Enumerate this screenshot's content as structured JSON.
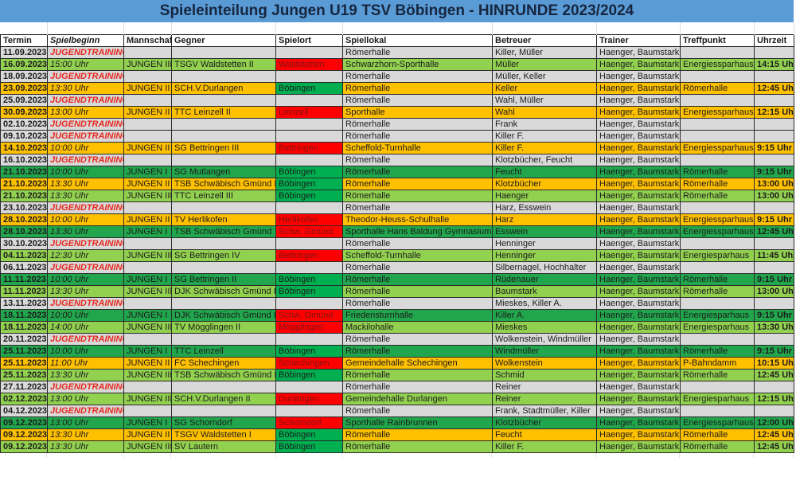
{
  "title": "Spieleinteilung Jungen U19 TSV Böbingen - HINRUNDE 2023/2024",
  "colors": {
    "title_bg": "#5b9bd5",
    "title_text": "#16263f",
    "team": {
      "I": "#22a64d",
      "II": "#ffc000",
      "III": "#92d050",
      "training": "#d9d9d9"
    },
    "venue_home_bg": "#00b050",
    "venue_away_bg": "#ff0000",
    "venue_away_text": "#7e1414",
    "training_text": "#e8281e"
  },
  "table": {
    "headers": [
      "Termin",
      "Spielbeginn",
      "Mannschaft",
      "Gegner",
      "Spielort",
      "Spiellokal",
      "Betreuer",
      "Trainer",
      "Treffpunkt",
      "Uhrzeit"
    ],
    "rows": [
      {
        "date": "11.09.2023",
        "begin": "JUGENDTRAINING",
        "team": "training",
        "mannschaft": "",
        "gegner": "",
        "spielort": "",
        "venue": "",
        "spiellokal": "Römerhalle",
        "betreuer": "Killer, Müller",
        "trainer": "Haenger, Baumstark",
        "treffpunkt": "",
        "uhrzeit": ""
      },
      {
        "date": "16.09.2023",
        "begin": "15:00 Uhr",
        "team": "III",
        "mannschaft": "JUNGEN III",
        "gegner": "TSGV Waldstetten II",
        "spielort": "Waldstetten",
        "venue": "away",
        "spiellokal": "Schwarzhorn-Sporthalle",
        "betreuer": "Müller",
        "trainer": "Haenger, Baumstark",
        "treffpunkt": "Energiessparhaus",
        "uhrzeit": "14:15 Uhr"
      },
      {
        "date": "18.09.2023",
        "begin": "JUGENDTRAINING",
        "team": "training",
        "mannschaft": "",
        "gegner": "",
        "spielort": "",
        "venue": "",
        "spiellokal": "Römerhalle",
        "betreuer": "Müller, Keller",
        "trainer": "Haenger, Baumstark",
        "treffpunkt": "",
        "uhrzeit": ""
      },
      {
        "date": "23.09.2023",
        "begin": "13:30 Uhr",
        "team": "II",
        "mannschaft": "JUNGEN II",
        "gegner": "SCH.V.Durlangen",
        "spielort": "Böbingen",
        "venue": "home",
        "spiellokal": "Römerhalle",
        "betreuer": "Keller",
        "trainer": "Haenger, Baumstark",
        "treffpunkt": "Römerhalle",
        "uhrzeit": "12:45 Uhr"
      },
      {
        "date": "25.09.2023",
        "begin": "JUGENDTRAINING",
        "team": "training",
        "mannschaft": "",
        "gegner": "",
        "spielort": "",
        "venue": "",
        "spiellokal": "Römerhalle",
        "betreuer": "Wahl, Müller",
        "trainer": "Haenger, Baumstark",
        "treffpunkt": "",
        "uhrzeit": ""
      },
      {
        "date": "30.09.2023",
        "begin": "13:00 Uhr",
        "team": "II",
        "mannschaft": "JUNGEN II",
        "gegner": "TTC Leinzell II",
        "spielort": "Leinzell",
        "venue": "away",
        "spiellokal": "Sporthalle",
        "betreuer": "Wahl",
        "trainer": "Haenger, Baumstark",
        "treffpunkt": "Energiessparhaus",
        "uhrzeit": "12:15 Uhr"
      },
      {
        "date": "02.10.2023",
        "begin": "JUGENDTRAINING",
        "team": "training",
        "mannschaft": "",
        "gegner": "",
        "spielort": "",
        "venue": "",
        "spiellokal": "Römerhalle",
        "betreuer": "Frank",
        "trainer": "Haenger, Baumstark",
        "treffpunkt": "",
        "uhrzeit": ""
      },
      {
        "date": "09.10.2023",
        "begin": "JUGENDTRAINING",
        "team": "training",
        "mannschaft": "",
        "gegner": "",
        "spielort": "",
        "venue": "",
        "spiellokal": "Römerhalle",
        "betreuer": "Killer F.",
        "trainer": "Haenger, Baumstark",
        "treffpunkt": "",
        "uhrzeit": ""
      },
      {
        "date": "14.10.2023",
        "begin": "10:00 Uhr",
        "team": "II",
        "mannschaft": "JUNGEN II",
        "gegner": "SG Bettringen III",
        "spielort": "Bettringen",
        "venue": "away",
        "spiellokal": "Scheffold-Turnhalle",
        "betreuer": "Killer F.",
        "trainer": "Haenger, Baumstark",
        "treffpunkt": "Energiessparhaus",
        "uhrzeit": "9:15 Uhr"
      },
      {
        "date": "16.10.2023",
        "begin": "JUGENDTRAINING",
        "team": "training",
        "mannschaft": "",
        "gegner": "",
        "spielort": "",
        "venue": "",
        "spiellokal": "Römerhalle",
        "betreuer": "Klotzbücher, Feucht",
        "trainer": "Haenger, Baumstark",
        "treffpunkt": "",
        "uhrzeit": ""
      },
      {
        "date": "21.10.2023",
        "begin": "10:00 Uhr",
        "team": "I",
        "mannschaft": "JUNGEN I",
        "gegner": "SG Mutlangen",
        "spielort": "Böbingen",
        "venue": "home",
        "spiellokal": "Römerhalle",
        "betreuer": "Feucht",
        "trainer": "Haenger, Baumstark",
        "treffpunkt": "Römerhalle",
        "uhrzeit": "9:15 Uhr"
      },
      {
        "date": "21.10.2023",
        "begin": "13:30 Uhr",
        "team": "II",
        "mannschaft": "JUNGEN II",
        "gegner": "TSB Schwäbisch Gmünd II",
        "spielort": "Böbingen",
        "venue": "home",
        "spiellokal": "Römerhalle",
        "betreuer": "Klotzbücher",
        "trainer": "Haenger, Baumstark",
        "treffpunkt": "Römerhalle",
        "uhrzeit": "13:00 Uhr"
      },
      {
        "date": "21.10.2023",
        "begin": "13:30 Uhr",
        "team": "III",
        "mannschaft": "JUNGEN III",
        "gegner": "TTC Leinzell III",
        "spielort": "Böbingen",
        "venue": "home",
        "spiellokal": "Römerhalle",
        "betreuer": "Haenger",
        "trainer": "Haenger, Baumstark",
        "treffpunkt": "Römerhalle",
        "uhrzeit": "13:00 Uhr"
      },
      {
        "date": "23.10.2023",
        "begin": "JUGENDTRAINING",
        "team": "training",
        "mannschaft": "",
        "gegner": "",
        "spielort": "",
        "venue": "",
        "spiellokal": "Römerhalle",
        "betreuer": "Harz, Esswein",
        "trainer": "Haenger, Baumstark",
        "treffpunkt": "",
        "uhrzeit": ""
      },
      {
        "date": "28.10.2023",
        "begin": "10:00 Uhr",
        "team": "II",
        "mannschaft": "JUNGEN II",
        "gegner": "TV Herlikofen",
        "spielort": "Herlikofen",
        "venue": "away",
        "spiellokal": "Theodor-Heuss-Schulhalle",
        "betreuer": "Harz",
        "trainer": "Haenger, Baumstark",
        "treffpunkt": "Energiessparhaus",
        "uhrzeit": "9:15 Uhr"
      },
      {
        "date": "28.10.2023",
        "begin": "13:30 Uhr",
        "team": "I",
        "mannschaft": "JUNGEN I",
        "gegner": "TSB Schwäbisch Gmünd",
        "spielort": "Schw. Gmünd",
        "venue": "away",
        "spiellokal": "Sporthalle Hans Baldung Gymnasium",
        "betreuer": "Esswein",
        "trainer": "Haenger, Baumstark",
        "treffpunkt": "Energiessparhaus",
        "uhrzeit": "12:45 Uhr"
      },
      {
        "date": "30.10.2023",
        "begin": "JUGENDTRAINING",
        "team": "training",
        "mannschaft": "",
        "gegner": "",
        "spielort": "",
        "venue": "",
        "spiellokal": "Römerhalle",
        "betreuer": "Henninger",
        "trainer": "Haenger, Baumstark",
        "treffpunkt": "",
        "uhrzeit": ""
      },
      {
        "date": "04.11.2023",
        "begin": "12:30 Uhr",
        "team": "III",
        "mannschaft": "JUNGEN III",
        "gegner": "SG Bettringen IV",
        "spielort": "Bettringen",
        "venue": "away",
        "spiellokal": "Scheffold-Turnhalle",
        "betreuer": "Henninger",
        "trainer": "Haenger, Baumstark",
        "treffpunkt": "Energiesparhaus",
        "uhrzeit": "11:45 Uhr"
      },
      {
        "date": "06.11.2023",
        "begin": "JUGENDTRAINING",
        "team": "training",
        "mannschaft": "",
        "gegner": "",
        "spielort": "",
        "venue": "",
        "spiellokal": "Römerhalle",
        "betreuer": "Silbernagel, Hochhalter",
        "trainer": "Haenger, Baumstark",
        "treffpunkt": "",
        "uhrzeit": ""
      },
      {
        "date": "11.11.2023",
        "begin": "10:00 Uhr",
        "team": "I",
        "mannschaft": "JUNGEN I",
        "gegner": "SG Bettringen II",
        "spielort": "Böbingen",
        "venue": "home",
        "spiellokal": "Römerhalle",
        "betreuer": "Rüdenauer",
        "trainer": "Haenger, Baumstark",
        "treffpunkt": "Römerhalle",
        "uhrzeit": "9:15 Uhr"
      },
      {
        "date": "11.11.2023",
        "begin": "13:30 Uhr",
        "team": "III",
        "mannschaft": "JUNGEN III",
        "gegner": "DJK Schwäbisch Gmünd II",
        "spielort": "Böbingen",
        "venue": "home",
        "spiellokal": "Römerhalle",
        "betreuer": "Baumstark",
        "trainer": "Haenger, Baumstark",
        "treffpunkt": "Römerhalle",
        "uhrzeit": "13:00 Uhr"
      },
      {
        "date": "13.11.2023",
        "begin": "JUGENDTRAINING",
        "team": "training",
        "mannschaft": "",
        "gegner": "",
        "spielort": "",
        "venue": "",
        "spiellokal": "Römerhalle",
        "betreuer": "Mieskes, Killer A.",
        "trainer": "Haenger, Baumstark",
        "treffpunkt": "",
        "uhrzeit": ""
      },
      {
        "date": "18.11.2023",
        "begin": "10:00 Uhr",
        "team": "I",
        "mannschaft": "JUNGEN I",
        "gegner": "DJK Schwäbisch Gmünd I",
        "spielort": "Schw. Gmünd",
        "venue": "away",
        "spiellokal": "Friedensturnhalle",
        "betreuer": "Killer A.",
        "trainer": "Haenger, Baumstark",
        "treffpunkt": "Energiesparhaus",
        "uhrzeit": "9:15 Uhr"
      },
      {
        "date": "18.11.2023",
        "begin": "14:00 Uhr",
        "team": "III",
        "mannschaft": "JUNGEN III",
        "gegner": "TV Mögglingen II",
        "spielort": "Mögglingen",
        "venue": "away",
        "spiellokal": "Mackilohalle",
        "betreuer": "Mieskes",
        "trainer": "Haenger, Baumstark",
        "treffpunkt": "Energiesparhaus",
        "uhrzeit": "13:30 Uhr"
      },
      {
        "date": "20.11.2023",
        "begin": "JUGENDTRAINING",
        "team": "training",
        "mannschaft": "",
        "gegner": "",
        "spielort": "",
        "venue": "",
        "spiellokal": "Römerhalle",
        "betreuer": "Wolkenstein, Windmüller",
        "trainer": "Haenger, Baumstark",
        "treffpunkt": "",
        "uhrzeit": ""
      },
      {
        "date": "25.11.2023",
        "begin": "10:00 Uhr",
        "team": "I",
        "mannschaft": "JUNGEN I",
        "gegner": "TTC Leinzell",
        "spielort": "Böbingen",
        "venue": "home",
        "spiellokal": "Römerhalle",
        "betreuer": "Windmüller",
        "trainer": "Haenger, Baumstark",
        "treffpunkt": "Römerhalle",
        "uhrzeit": "9:15 Uhr"
      },
      {
        "date": "25.11.2023",
        "begin": "11:00 Uhr",
        "team": "II",
        "mannschaft": "JUNGEN II",
        "gegner": "FC Schechingen",
        "spielort": "Schechingen",
        "venue": "away",
        "spiellokal": "Gemeindehalle Schechingen",
        "betreuer": "Wolkenstein",
        "trainer": "Haenger, Baumstark",
        "treffpunkt": "P-Bahndamm",
        "uhrzeit": "10:15 Uhr"
      },
      {
        "date": "25.11.2023",
        "begin": "13:30 Uhr",
        "team": "III",
        "mannschaft": "JUNGEN III",
        "gegner": "TSB Schwäbisch Gmünd II",
        "spielort": "Böbingen",
        "venue": "home",
        "spiellokal": "Römerhalle",
        "betreuer": "Schmid",
        "trainer": "Haenger, Baumstark",
        "treffpunkt": "Römerhalle",
        "uhrzeit": "12:45 Uhr"
      },
      {
        "date": "27.11.2023",
        "begin": "JUGENDTRAINING",
        "team": "training",
        "mannschaft": "",
        "gegner": "",
        "spielort": "",
        "venue": "",
        "spiellokal": "Römerhalle",
        "betreuer": "Reiner",
        "trainer": "Haenger, Baumstark",
        "treffpunkt": "",
        "uhrzeit": ""
      },
      {
        "date": "02.12.2023",
        "begin": "13:00 Uhr",
        "team": "III",
        "mannschaft": "JUNGEN III",
        "gegner": "SCH.V.Durlangen II",
        "spielort": "Durlangen",
        "venue": "away",
        "spiellokal": "Gemeindehalle Durlangen",
        "betreuer": "Reiner",
        "trainer": "Haenger, Baumstark",
        "treffpunkt": "Energiesparhaus",
        "uhrzeit": "12:15 Uhr"
      },
      {
        "date": "04.12.2023",
        "begin": "JUGENDTRAINING",
        "team": "training",
        "mannschaft": "",
        "gegner": "",
        "spielort": "",
        "venue": "",
        "spiellokal": "Römerhalle",
        "betreuer": "Frank, Stadtmüller, Killer",
        "trainer": "Haenger, Baumstark",
        "treffpunkt": "",
        "uhrzeit": ""
      },
      {
        "date": "09.12.2023",
        "begin": "13:00 Uhr",
        "team": "I",
        "mannschaft": "JUNGEN I",
        "gegner": "SG Schorndorf",
        "spielort": "Schorndorf",
        "venue": "away",
        "spiellokal": "Sporthalle Rainbrunnen",
        "betreuer": "Klotzbücher",
        "trainer": "Haenger, Baumstark",
        "treffpunkt": "Energiessparhaus",
        "uhrzeit": "12:00 Uhr"
      },
      {
        "date": "09.12.2023",
        "begin": "13:30 Uhr",
        "team": "II",
        "mannschaft": "JUNGEN II",
        "gegner": "TSGV Waldstetten I",
        "spielort": "Böbingen",
        "venue": "home",
        "spiellokal": "Römerhalle",
        "betreuer": "Feucht",
        "trainer": "Haenger, Baumstark",
        "treffpunkt": "Römerhalle",
        "uhrzeit": "12:45 Uhr"
      },
      {
        "date": "09.12.2023",
        "begin": "13:30 Uhr",
        "team": "III",
        "mannschaft": "JUNGEN III",
        "gegner": "SV Lautern",
        "spielort": "Böbingen",
        "venue": "home",
        "spiellokal": "Römerhalle",
        "betreuer": "Killer F.",
        "trainer": "Haenger, Baumstark",
        "treffpunkt": "Römerhalle",
        "uhrzeit": "12:45 Uhr"
      }
    ]
  }
}
